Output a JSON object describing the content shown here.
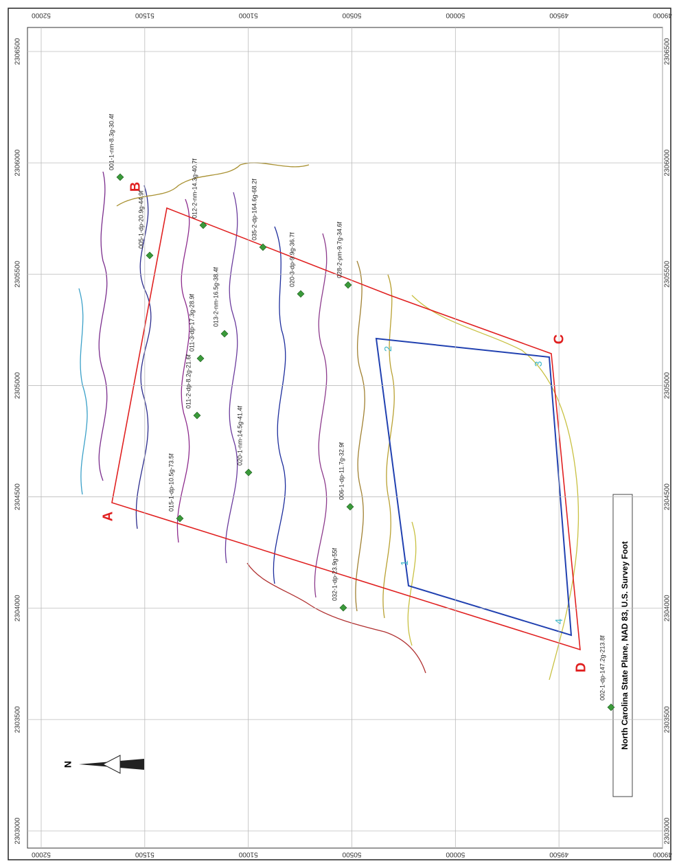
{
  "map": {
    "x_ticks": [
      52000,
      51500,
      51000,
      50500,
      50000,
      49500,
      49000
    ],
    "y_ticks": [
      2306500,
      2306000,
      2305500,
      2305000,
      2304500,
      2304000,
      2303500,
      2303000
    ],
    "corners": [
      "A",
      "B",
      "C",
      "D"
    ],
    "inner_corners": [
      "1",
      "2",
      "3",
      "4"
    ],
    "wells": [
      "001-1-nm-8.3g-30.4f",
      "005-1-dp-20.9g-44.9f",
      "012-2-nm-14.3g-40.7f",
      "035-2-dp-164.6g-68.2f",
      "020-3-dp-9.9g-36.7f",
      "013-2-nm-16.5g-38.4f",
      "011-3-dp-17.3g-28.9f",
      "011-2-dp-8.2g-21.6f",
      "028-2-pm-9.7g-34.6f",
      "015-1-dp-10.5g-73.5f",
      "020-1-nm-14.5g-41.4f",
      "006-1-dp-11.7g-32.9f",
      "032-1-dp-23.9g-55f",
      "002-1-dp-147.2g-213.8f"
    ],
    "projection": "North Carolina State Plane, NAD 83, U.S. Survey Foot",
    "north": "N"
  }
}
